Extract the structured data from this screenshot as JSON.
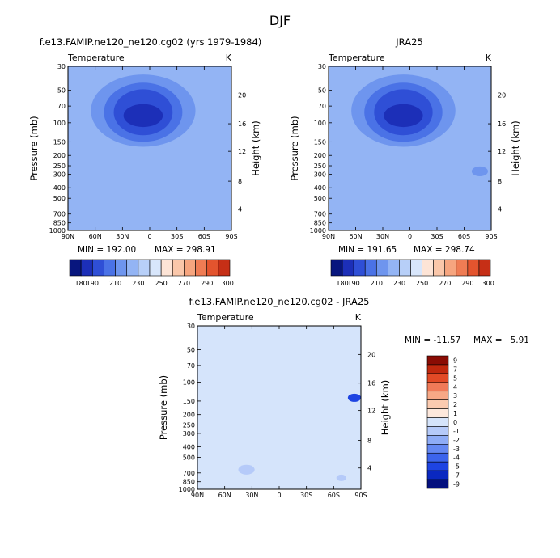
{
  "figure_title": "DJF",
  "panel_titles": {
    "left": "f.e13.FAMIP.ne120_ne120.cg02 (yrs 1979-1984)",
    "right": "JRA25",
    "bottom": "f.e13.FAMIP.ne120_ne120.cg02 - JRA25"
  },
  "variable_label": "Temperature",
  "units_label": "K",
  "stats": {
    "left": {
      "min": "MIN = 192.00",
      "max": "MAX = 298.91"
    },
    "right": {
      "min": "MIN = 191.65",
      "max": "MAX = 298.74"
    },
    "bottom": {
      "min": "MIN = -11.57",
      "max": "MAX =   5.91"
    }
  },
  "axis_labels": {
    "left_y": "Pressure (mb)",
    "right_y": "Height (km)"
  },
  "palettes": {
    "temperature": [
      "#08167e",
      "#1c2fb8",
      "#2f4fd6",
      "#4a72e6",
      "#6e95ee",
      "#93b4f4",
      "#b7cff8",
      "#d8e6fb",
      "#fde4d6",
      "#fac7aa",
      "#f6a57f",
      "#ef7c54",
      "#e3542e",
      "#c62f16",
      "#8e0e06"
    ],
    "difference": [
      "#04107e",
      "#0a28c0",
      "#1e44e2",
      "#3c64ec",
      "#6488f2",
      "#8eacf6",
      "#b5caf9",
      "#d5e4fb",
      "#fde8dc",
      "#fbcbb0",
      "#f7a886",
      "#f07a58",
      "#e24a26",
      "#c0280e",
      "#8a0c04"
    ]
  },
  "chart_data": [
    {
      "type": "heatmap",
      "name": "model-temperature",
      "title": "f.e13.FAMIP.ne120_ne120.cg02 (yrs 1979-1984)",
      "variable": "Temperature",
      "units": "K",
      "xlabel": "",
      "ylabel": "Pressure (mb)",
      "ylabel_right": "Height (km)",
      "x_ticks": [
        "90N",
        "60N",
        "30N",
        "0",
        "30S",
        "60S",
        "90S"
      ],
      "y_ticks": [
        "30",
        "50",
        "70",
        "100",
        "150",
        "200",
        "250",
        "300",
        "400",
        "500",
        "700",
        "850",
        "1000"
      ],
      "height_ticks": [
        "4",
        "8",
        "12",
        "16",
        "20"
      ],
      "min": 192.0,
      "max": 298.91,
      "colorbar_levels": [
        180,
        185,
        190,
        200,
        210,
        220,
        230,
        240,
        250,
        260,
        270,
        280,
        290,
        300
      ],
      "colorbar_labels": [
        "180",
        "190",
        "210",
        "230",
        "250",
        "270",
        "290",
        "300"
      ]
    },
    {
      "type": "heatmap",
      "name": "reanalysis-temperature",
      "title": "JRA25",
      "variable": "Temperature",
      "units": "K",
      "xlabel": "",
      "ylabel": "Pressure (mb)",
      "ylabel_right": "Height (km)",
      "x_ticks": [
        "90N",
        "60N",
        "30N",
        "0",
        "30S",
        "60S",
        "90S"
      ],
      "y_ticks": [
        "30",
        "50",
        "70",
        "100",
        "150",
        "200",
        "250",
        "300",
        "400",
        "500",
        "700",
        "850",
        "1000"
      ],
      "height_ticks": [
        "4",
        "8",
        "12",
        "16",
        "20"
      ],
      "min": 191.65,
      "max": 298.74,
      "colorbar_levels": [
        180,
        185,
        190,
        200,
        210,
        220,
        230,
        240,
        250,
        260,
        270,
        280,
        290,
        300
      ],
      "colorbar_labels": [
        "180",
        "190",
        "210",
        "230",
        "250",
        "270",
        "290",
        "300"
      ]
    },
    {
      "type": "heatmap",
      "name": "difference-temperature",
      "title": "f.e13.FAMIP.ne120_ne120.cg02 - JRA25",
      "variable": "Temperature",
      "units": "K",
      "xlabel": "",
      "ylabel": "Pressure (mb)",
      "ylabel_right": "Height (km)",
      "x_ticks": [
        "90N",
        "60N",
        "30N",
        "0",
        "30S",
        "60S",
        "90S"
      ],
      "y_ticks": [
        "30",
        "50",
        "70",
        "100",
        "150",
        "200",
        "250",
        "300",
        "400",
        "500",
        "700",
        "850",
        "1000"
      ],
      "height_ticks": [
        "4",
        "8",
        "12",
        "16",
        "20"
      ],
      "min": -11.57,
      "max": 5.91,
      "colorbar_levels": [
        -9,
        -7,
        -5,
        -4,
        -3,
        -2,
        -1,
        0,
        1,
        2,
        3,
        4,
        5,
        7,
        9
      ],
      "colorbar_labels": [
        "9",
        "7",
        "5",
        "4",
        "3",
        "2",
        "1",
        "0",
        "-1",
        "-2",
        "-3",
        "-4",
        "-5",
        "-7",
        "-9"
      ]
    }
  ]
}
